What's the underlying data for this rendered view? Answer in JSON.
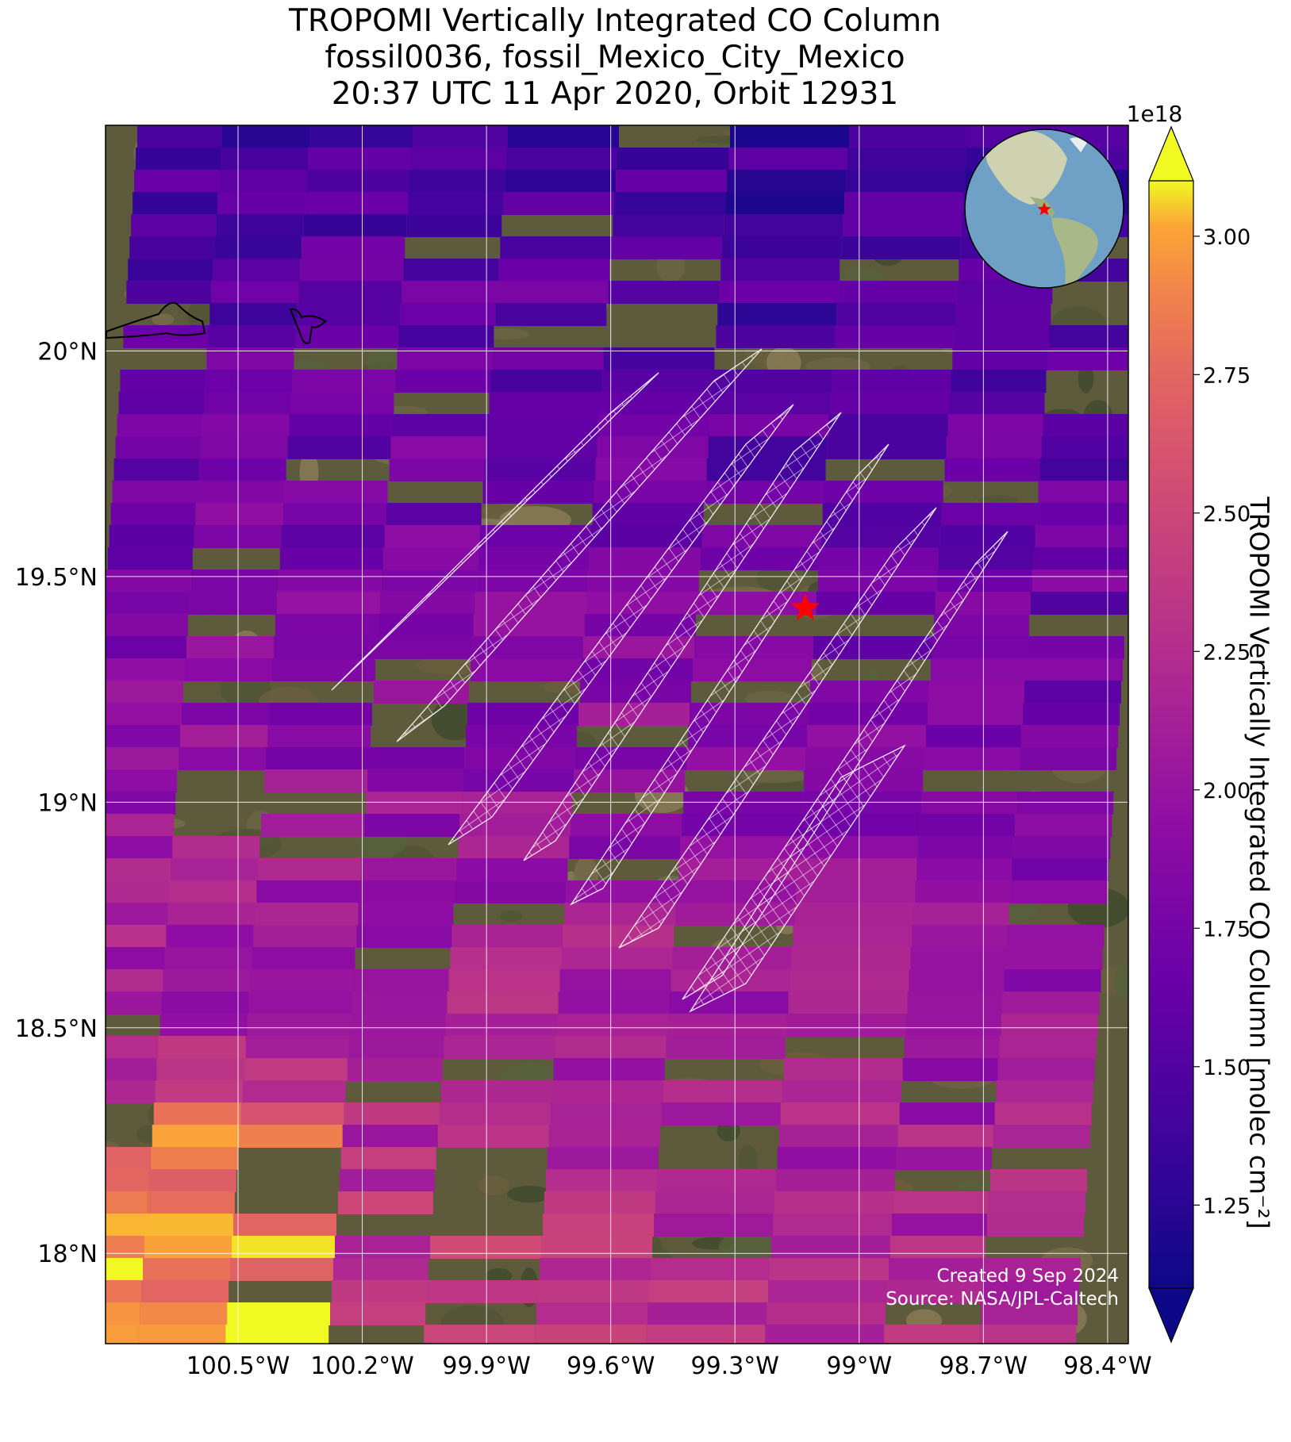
{
  "title": {
    "line1": "TROPOMI Vertically Integrated CO Column",
    "line2": "fossil0036, fossil_Mexico_City_Mexico",
    "line3": "20:37 UTC 11 Apr 2020, Orbit 12931"
  },
  "map": {
    "lon_range": [
      -100.82,
      -98.35
    ],
    "lat_range": [
      17.8,
      20.5
    ],
    "x_ticks": [
      "100.5°W",
      "100.2°W",
      "99.9°W",
      "99.6°W",
      "99.3°W",
      "99°W",
      "98.7°W",
      "98.4°W"
    ],
    "x_tick_values": [
      -100.5,
      -100.2,
      -99.9,
      -99.6,
      -99.3,
      -99.0,
      -98.7,
      -98.4
    ],
    "y_ticks": [
      "20°N",
      "19.5°N",
      "19°N",
      "18.5°N",
      "18°N"
    ],
    "y_tick_values": [
      20.0,
      19.5,
      19.0,
      18.5,
      18.0
    ],
    "target_marker": {
      "lon": -99.13,
      "lat": 19.43,
      "color": "#ff0000",
      "symbol": "star"
    },
    "gridlines": true
  },
  "colorbar": {
    "label": "TROPOMI Vertically Integrated CO Column [molec cm⁻²]",
    "exponent": "1e18",
    "colormap": "plasma",
    "vmin": 1.1,
    "vmax": 3.1,
    "extend": "both",
    "ticks": [
      "1.25",
      "1.50",
      "1.75",
      "2.00",
      "2.25",
      "2.50",
      "2.75",
      "3.00"
    ],
    "tick_values": [
      1.25,
      1.5,
      1.75,
      2.0,
      2.25,
      2.5,
      2.75,
      3.0
    ]
  },
  "credits": {
    "created": "Created 9 Sep 2024",
    "source": "Source: NASA/JPL-Caltech"
  },
  "inset_globe": {
    "marker_color": "#ff0000"
  }
}
